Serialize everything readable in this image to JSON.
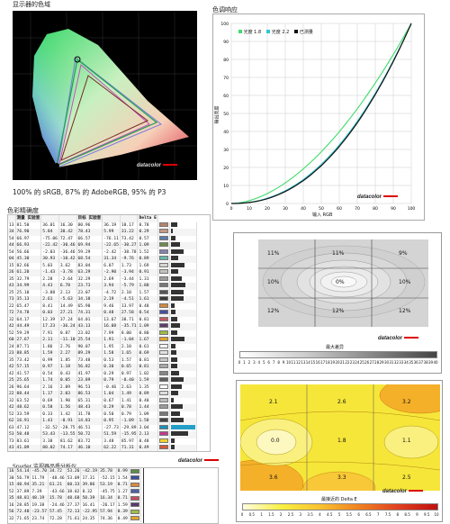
{
  "gamut": {
    "title": "显示器的色域",
    "caption": "100% 的 sRGB, 87% 的 AdobeRGB, 95% 的 P3",
    "logo": "datacolor"
  },
  "tone": {
    "title": "色调响应",
    "legend": [
      "光度 1.8",
      "光度 2.2",
      "已测量"
    ],
    "ylabel": "输出亮度",
    "xlabel": "输入 RGB",
    "xticks": [
      "0",
      "10",
      "20",
      "30",
      "40",
      "50",
      "60",
      "70",
      "80",
      "90",
      "100"
    ],
    "yticks": [
      "0",
      "10",
      "20",
      "30",
      "40",
      "50",
      "60",
      "70",
      "80",
      "90",
      "100"
    ],
    "logo": "datacolor",
    "colors": {
      "g18": "#3ddc6a",
      "g22": "#2fc6d2",
      "measured": "#111111"
    }
  },
  "accuracy": {
    "title": "色彩精确度",
    "headers": [
      "",
      "测量 实验室",
      "",
      "",
      "目标 实验室",
      "",
      "",
      "Delta E"
    ],
    "rows": [
      [
        "13",
        "81.50",
        "36.01",
        "16.30",
        "80.96",
        "36.19",
        "18.17",
        "0.78"
      ],
      [
        "34",
        "76.90",
        "5.84",
        "30.42",
        "78.43",
        "5.99",
        "31.22",
        "0.29"
      ],
      [
        "54",
        "66.97",
        "-75.06",
        "72.47",
        "66.57",
        "-76.11",
        "73.42",
        "0.57"
      ],
      [
        "44",
        "66.93",
        "-22.42",
        "-30.46",
        "69.94",
        "-22.65",
        "-30.27",
        "1.09"
      ],
      [
        "54",
        "56.66",
        "-2.03",
        "-36.46",
        "59.29",
        "-2.42",
        "-38.78",
        "1.52"
      ],
      [
        "04",
        "45.30",
        "30.93",
        "-10.42",
        "68.54",
        "31.34",
        "-9.76",
        "0.89"
      ],
      [
        "15",
        "82.66",
        "5.03",
        "3.62",
        "83.04",
        "6.07",
        "1.73",
        "1.69"
      ],
      [
        "26",
        "61.20",
        "-1.43",
        "-3.78",
        "63.29",
        "-2.90",
        "-3.94",
        "0.91"
      ],
      [
        "35",
        "32.79",
        "2.28",
        "-2.64",
        "32.29",
        "2.69",
        "-3.44",
        "1.31"
      ],
      [
        "43",
        "34.99",
        "4.43",
        "6.78",
        "23.73",
        "3.94",
        "-5.79",
        "1.80"
      ],
      [
        "25",
        "25.10",
        "-3.88",
        "2.13",
        "23.07",
        "-4.72",
        "2.10",
        "1.57"
      ],
      [
        "73",
        "35.13",
        "2.61",
        "-5.63",
        "34.18",
        "2.19",
        "-4.51",
        "1.61"
      ],
      [
        "22",
        "65.47",
        "8.41",
        "14.49",
        "65.98",
        "9.46",
        "13.97",
        "0.48"
      ],
      [
        "72",
        "74.78",
        "0.03",
        "27.21",
        "74.31",
        "0.48",
        "27.58",
        "0.54"
      ],
      [
        "32",
        "64.17",
        "12.39",
        "37.24",
        "64.01",
        "13.67",
        "38.71",
        "0.81"
      ],
      [
        "42",
        "44.49",
        "17.23",
        "-36.24",
        "43.13",
        "16.08",
        "-35.71",
        "1.09"
      ],
      [
        "52",
        "59.29",
        "7.91",
        "0.87",
        "23.02",
        "7.99",
        "8.00",
        "0.80"
      ],
      [
        "60",
        "27.67",
        "2.11",
        "-11.10",
        "25.54",
        "1.91",
        "-1.04",
        "1.67"
      ],
      [
        "24",
        "87.71",
        "1.86",
        "2.76",
        "90.07",
        "1.95",
        "2.10",
        "0.61"
      ],
      [
        "23",
        "88.85",
        "1.59",
        "2.27",
        "89.29",
        "1.58",
        "1.65",
        "0.69"
      ],
      [
        "35",
        "73.42",
        "0.99",
        "1.85",
        "73.48",
        "0.53",
        "1.57",
        "0.81"
      ],
      [
        "42",
        "57.15",
        "0.97",
        "1.18",
        "56.82",
        "0.30",
        "0.65",
        "0.81"
      ],
      [
        "42",
        "41.57",
        "0.54",
        "0.43",
        "41.97",
        "0.29",
        "0.97",
        "1.02"
      ],
      [
        "25",
        "25.65",
        "1.74",
        "0.05",
        "23.89",
        "0.79",
        "-0.40",
        "1.59"
      ],
      [
        "26",
        "96.64",
        "2.16",
        "2.09",
        "96.53",
        "-0.46",
        "2.63",
        "1.35"
      ],
      [
        "22",
        "88.44",
        "1.17",
        "2.03",
        "86.53",
        "1.04",
        "1.49",
        "0.89"
      ],
      [
        "32",
        "63.52",
        "0.69",
        "1.90",
        "65.31",
        "0.67",
        "1.41",
        "0.40"
      ],
      [
        "42",
        "48.62",
        "0.58",
        "1.56",
        "48.43",
        "0.29",
        "0.78",
        "1.44"
      ],
      [
        "52",
        "33.59",
        "0.33",
        "1.42",
        "31.78",
        "0.50",
        "0.79",
        "1.09"
      ],
      [
        "62",
        "16.91",
        "1.43",
        "-0.91",
        "14.83",
        "0.95",
        "-1.09",
        "1.58"
      ],
      [
        "63",
        "47.12",
        "-32.52",
        "-28.75",
        "46.51",
        "-27.73",
        "-29.89",
        "3.04"
      ],
      [
        "53",
        "50.48",
        "53.43",
        "-13.55",
        "50.72",
        "51.59",
        "-15.95",
        "2.13"
      ],
      [
        "73",
        "83.61",
        "3.38",
        "81.62",
        "83.72",
        "3.48",
        "85.97",
        "0.48"
      ],
      [
        "43",
        "41.09",
        "80.02",
        "74.17",
        "46.10",
        "62.22",
        "71.31",
        "0.49"
      ]
    ],
    "swatches": [
      "#b58469",
      "#c59a86",
      "#5a7fa4",
      "#6e8a4a",
      "#8583b0",
      "#66b9ad",
      "#d5d6d2",
      "#c3c4c0",
      "#9c9c9a",
      "#767674",
      "#555553",
      "#3a3a38",
      "#d18a3f",
      "#494ea6",
      "#c15a62",
      "#5f3c6c",
      "#9dbc40",
      "#e2a22b",
      "#f3f3f2",
      "#e1e1e0",
      "#c7c7c6",
      "#a8a8a7",
      "#858584",
      "#5f5f5e",
      "#ffffff",
      "#dddddd",
      "#bbbbbb",
      "#999999",
      "#777777",
      "#444444",
      "#1c8fb8",
      "#bf3c8f",
      "#f0d22b",
      "#d25a3a"
    ],
    "bars": [
      0.78,
      0.29,
      0.57,
      1.09,
      1.52,
      0.89,
      1.69,
      0.91,
      1.31,
      1.8,
      1.57,
      1.61,
      0.48,
      0.54,
      0.81,
      1.09,
      0.8,
      1.67,
      0.61,
      0.69,
      0.81,
      0.81,
      1.02,
      1.59,
      1.35,
      0.89,
      0.4,
      1.44,
      1.09,
      1.58,
      3.04,
      2.13,
      0.48,
      0.49
    ]
  },
  "uniformity": {
    "labels": [
      "11%",
      "11%",
      "9%",
      "10%",
      "0%",
      "10%",
      "12%",
      "12%",
      "12%"
    ],
    "scale_title": "最大差异",
    "scale_ticks": [
      "0",
      "1",
      "2",
      "3",
      "4",
      "5",
      "6",
      "7",
      "8",
      "9",
      "10",
      "11",
      "12",
      "13",
      "14",
      "15",
      "16",
      "17",
      "18",
      "19",
      "20",
      "21",
      "22",
      "23",
      "24",
      "25",
      "26",
      "27",
      "28",
      "29",
      "30",
      "31",
      "32",
      "33",
      "34",
      "35",
      "36",
      "37",
      "38",
      "39",
      "40"
    ],
    "logo": "datacolor"
  },
  "deltae_map": {
    "labels": [
      "2.1",
      "2.6",
      "3.2",
      "0.0",
      "1.8",
      "1.1",
      "3.6",
      "3.3",
      "2.5"
    ],
    "scale_title": "最接近的 Delta E",
    "scale_ticks": [
      "0",
      "0.5",
      "1",
      "1.5",
      "2",
      "2.5",
      "3",
      "3.5",
      "4",
      "4.5",
      "5",
      "5.5",
      "6",
      "6.5",
      "7",
      "7.5",
      "8",
      "8.5",
      "9",
      "9.5",
      "10"
    ],
    "logo": "datacolor"
  },
  "spyder": {
    "title": "Spyder 监视器品质分析仪",
    "rows": [
      [
        "16",
        "54.14",
        "-45.70",
        "34.72",
        "53.26",
        "-42.19",
        "35.78",
        "0.99"
      ],
      [
        "30",
        "56.79",
        "11.79",
        "-48.46",
        "53.09",
        "17.31",
        "-52.15",
        "1.54"
      ],
      [
        "15",
        "40.94",
        "35.21",
        "61.21",
        "60.33",
        "39.86",
        "53.19",
        "0.71"
      ],
      [
        "52",
        "37.89",
        "7.39",
        "-43.66",
        "38.02",
        "8.32",
        "-45.75",
        "1.27"
      ],
      [
        "35",
        "48.81",
        "48.19",
        "15.78",
        "48.68",
        "50.39",
        "16.34",
        "0.71"
      ],
      [
        "16",
        "28.85",
        "19.38",
        "-24.46",
        "27.37",
        "16.41",
        "-26.17",
        "1.59"
      ],
      [
        "56",
        "72.40",
        "-23.57",
        "57.45",
        "72.13",
        "-22.95",
        "57.94",
        "0.39"
      ],
      [
        "32",
        "71.65",
        "23.74",
        "72.28",
        "71.61",
        "24.35",
        "74.36",
        "0.49"
      ]
    ],
    "swatches": [
      "#5c8c45",
      "#3c4ea0",
      "#d98a3c",
      "#4a62a8",
      "#c44e5a",
      "#5c3a6a",
      "#a0bd44",
      "#e0a42c"
    ],
    "logo": "datacolor"
  }
}
